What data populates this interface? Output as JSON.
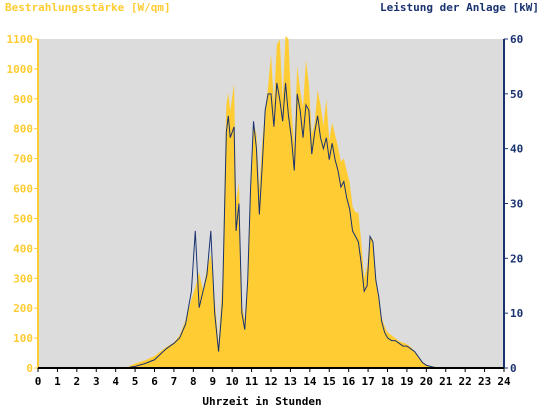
{
  "chart_data": {
    "type": "area",
    "left_axis_title": "Bestrahlungsstärke [W/qm]",
    "right_axis_title": "Leistung der Anlage [kW]",
    "xlabel": "Uhrzeit in Stunden",
    "xlim": [
      0,
      24
    ],
    "ylim_left": [
      0,
      1100
    ],
    "ylim_right": [
      0,
      60
    ],
    "x_ticks": [
      "0",
      "1",
      "2",
      "3",
      "4",
      "5",
      "6",
      "7",
      "8",
      "9",
      "10",
      "11",
      "12",
      "13",
      "14",
      "15",
      "16",
      "17",
      "18",
      "19",
      "20",
      "21",
      "22",
      "23",
      "24"
    ],
    "y_ticks_left": [
      "0",
      "100",
      "200",
      "300",
      "400",
      "500",
      "600",
      "700",
      "800",
      "900",
      "1000",
      "1100"
    ],
    "y_ticks_right": [
      "0",
      "10",
      "20",
      "30",
      "40",
      "50",
      "60"
    ],
    "colors": {
      "plot_background": "#dcdcdc",
      "irradiance_fill": "#ffcc33",
      "power_line": "#1a3370",
      "left_axis": "#ffcc33",
      "right_axis": "#1a3370"
    },
    "series": [
      {
        "axis": "left",
        "style": "area",
        "x": [
          0,
          4.5,
          5,
          5.5,
          6,
          6.3,
          6.6,
          7,
          7.3,
          7.6,
          7.9,
          8.1,
          8.3,
          8.5,
          8.7,
          8.9,
          9.1,
          9.3,
          9.5,
          9.7,
          9.8,
          9.9,
          10.1,
          10.2,
          10.35,
          10.5,
          10.65,
          10.8,
          10.95,
          11.1,
          11.25,
          11.4,
          11.55,
          11.7,
          11.85,
          12,
          12.15,
          12.3,
          12.45,
          12.6,
          12.75,
          12.9,
          13.05,
          13.2,
          13.35,
          13.5,
          13.65,
          13.8,
          13.95,
          14.1,
          14.25,
          14.4,
          14.55,
          14.7,
          14.85,
          15,
          15.15,
          15.3,
          15.45,
          15.6,
          15.75,
          15.9,
          16.05,
          16.2,
          16.35,
          16.5,
          16.65,
          16.8,
          16.95,
          17.1,
          17.25,
          17.4,
          17.55,
          17.7,
          17.85,
          18,
          18.2,
          18.4,
          18.6,
          18.8,
          19,
          19.2,
          19.4,
          19.6,
          19.8,
          20,
          20.3,
          20.6,
          21,
          24
        ],
        "y": [
          0,
          0,
          15,
          25,
          40,
          55,
          70,
          85,
          110,
          160,
          230,
          270,
          320,
          260,
          330,
          380,
          230,
          80,
          300,
          880,
          920,
          860,
          950,
          560,
          620,
          210,
          160,
          300,
          600,
          820,
          780,
          600,
          760,
          860,
          940,
          1050,
          880,
          1080,
          1100,
          900,
          1110,
          1100,
          860,
          740,
          1010,
          930,
          870,
          1030,
          950,
          780,
          820,
          930,
          880,
          810,
          900,
          760,
          820,
          780,
          740,
          690,
          700,
          660,
          620,
          540,
          520,
          520,
          420,
          300,
          340,
          440,
          430,
          290,
          230,
          170,
          140,
          120,
          110,
          100,
          90,
          85,
          80,
          70,
          55,
          40,
          20,
          10,
          5,
          3,
          0,
          0
        ]
      },
      {
        "axis": "right",
        "style": "line",
        "x": [
          0,
          4.5,
          5,
          5.5,
          6,
          6.3,
          6.6,
          7,
          7.3,
          7.6,
          7.9,
          8.1,
          8.3,
          8.5,
          8.7,
          8.9,
          9.1,
          9.3,
          9.5,
          9.7,
          9.8,
          9.9,
          10.1,
          10.2,
          10.35,
          10.5,
          10.65,
          10.8,
          10.95,
          11.1,
          11.25,
          11.4,
          11.55,
          11.7,
          11.85,
          12,
          12.15,
          12.3,
          12.45,
          12.6,
          12.75,
          12.9,
          13.05,
          13.2,
          13.35,
          13.5,
          13.65,
          13.8,
          13.95,
          14.1,
          14.25,
          14.4,
          14.55,
          14.7,
          14.85,
          15,
          15.15,
          15.3,
          15.45,
          15.6,
          15.75,
          15.9,
          16.05,
          16.2,
          16.35,
          16.5,
          16.65,
          16.8,
          16.95,
          17.1,
          17.25,
          17.4,
          17.55,
          17.7,
          17.85,
          18,
          18.2,
          18.4,
          18.6,
          18.8,
          19,
          19.2,
          19.4,
          19.6,
          19.8,
          20,
          20.3,
          20.6,
          21,
          24
        ],
        "y": [
          0,
          0,
          0.3,
          0.8,
          1.5,
          2.5,
          3.5,
          4.5,
          5.5,
          8,
          14,
          25,
          11,
          14,
          17,
          25,
          10,
          3,
          12,
          43,
          46,
          42,
          44,
          25,
          30,
          10,
          7,
          16,
          33,
          45,
          40,
          28,
          37,
          47,
          50,
          50,
          44,
          52,
          49,
          45,
          52,
          46,
          42,
          36,
          50,
          47,
          42,
          48,
          47,
          39,
          43,
          46,
          42,
          40,
          42,
          38,
          41,
          38,
          36,
          33,
          34,
          31,
          29,
          25,
          24,
          23,
          19,
          14,
          15,
          24,
          23,
          16,
          13,
          8.5,
          6.5,
          5.5,
          5,
          5,
          4.5,
          4,
          4,
          3.5,
          3,
          2,
          1,
          0.5,
          0.2,
          0,
          0,
          0
        ]
      }
    ]
  }
}
